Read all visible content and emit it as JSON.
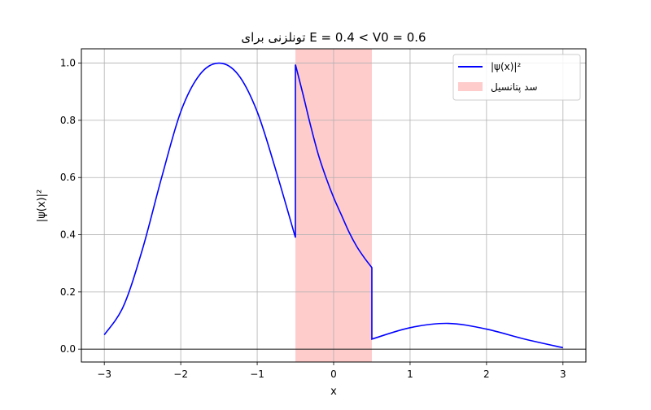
{
  "chart_data": {
    "type": "line",
    "title": "تونلزنی برای E = 0.4 < V0 = 0.6",
    "xlabel": "x",
    "ylabel": "|ψ(x)|²",
    "xlim": [
      -3.3,
      3.3
    ],
    "ylim": [
      -0.045,
      1.05
    ],
    "x_ticks": [
      -3,
      -2,
      -1,
      0,
      1,
      2,
      3
    ],
    "x_tick_labels": [
      "−3",
      "−2",
      "−1",
      "0",
      "1",
      "2",
      "3"
    ],
    "y_ticks": [
      0.0,
      0.2,
      0.4,
      0.6,
      0.8,
      1.0
    ],
    "y_tick_labels": [
      "0.0",
      "0.2",
      "0.4",
      "0.6",
      "0.8",
      "1.0"
    ],
    "grid": true,
    "legend_position": "top-right",
    "series": [
      {
        "name": "|ψ(x)|²",
        "color": "#0000ff",
        "x": [
          -3.0,
          -2.75,
          -2.5,
          -2.25,
          -2.0,
          -1.75,
          -1.5,
          -1.25,
          -1.0,
          -0.75,
          -0.5,
          -0.5,
          -0.4,
          -0.3,
          -0.2,
          -0.1,
          0.0,
          0.1,
          0.2,
          0.3,
          0.4,
          0.5,
          0.5,
          1.0,
          1.5,
          2.0,
          2.5,
          3.0
        ],
        "y": [
          0.05,
          0.15,
          0.35,
          0.6,
          0.83,
          0.96,
          1.0,
          0.96,
          0.83,
          0.62,
          0.39,
          0.995,
          0.89,
          0.78,
          0.68,
          0.6,
          0.53,
          0.47,
          0.41,
          0.36,
          0.32,
          0.285,
          0.035,
          0.075,
          0.09,
          0.07,
          0.035,
          0.005
        ]
      }
    ],
    "shaded_regions": [
      {
        "name": "سد پتانسیل",
        "x_start": -0.5,
        "x_end": 0.5,
        "color": "#ff9999"
      }
    ],
    "reference_lines": [
      {
        "orientation": "horizontal",
        "y": 0,
        "color": "#000000"
      }
    ]
  }
}
